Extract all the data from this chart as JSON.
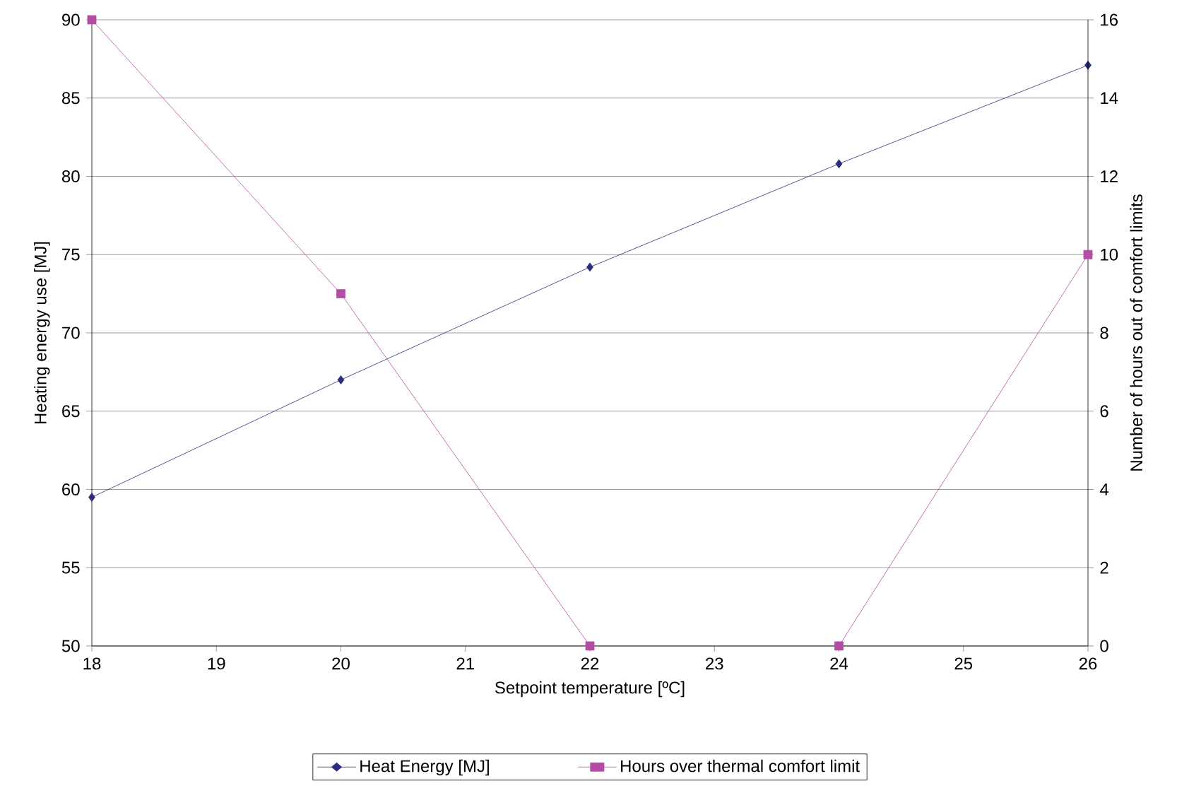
{
  "chart_data": {
    "type": "line",
    "xlabel": "Setpoint temperature [ºC]",
    "ylabel": "Heating energy use [MJ]",
    "y2label": "Number of hours out of comfort limits",
    "x": [
      18,
      20,
      22,
      24,
      26
    ],
    "series": [
      {
        "name": "Heat Energy [MJ]",
        "color": "#2b2b7f",
        "marker": "diamond",
        "values": [
          59.5,
          67,
          74.2,
          80.8,
          87.1
        ]
      },
      {
        "name": "Hours over thermal comfort limit",
        "color": "#b44ca6",
        "marker": "square",
        "axis": "y2",
        "values": [
          16,
          9,
          0,
          0,
          10
        ]
      }
    ],
    "xlim": [
      18,
      26
    ],
    "xticks": [
      18,
      19,
      20,
      21,
      22,
      23,
      24,
      25,
      26
    ],
    "ylim": [
      50,
      90
    ],
    "yticks": [
      50,
      55,
      60,
      65,
      70,
      75,
      80,
      85,
      90
    ],
    "y2lim": [
      0,
      16
    ],
    "y2ticks": [
      0,
      2,
      4,
      6,
      8,
      10,
      12,
      14,
      16
    ],
    "grid": "y",
    "legend": "bottom",
    "line_style": "solid"
  }
}
